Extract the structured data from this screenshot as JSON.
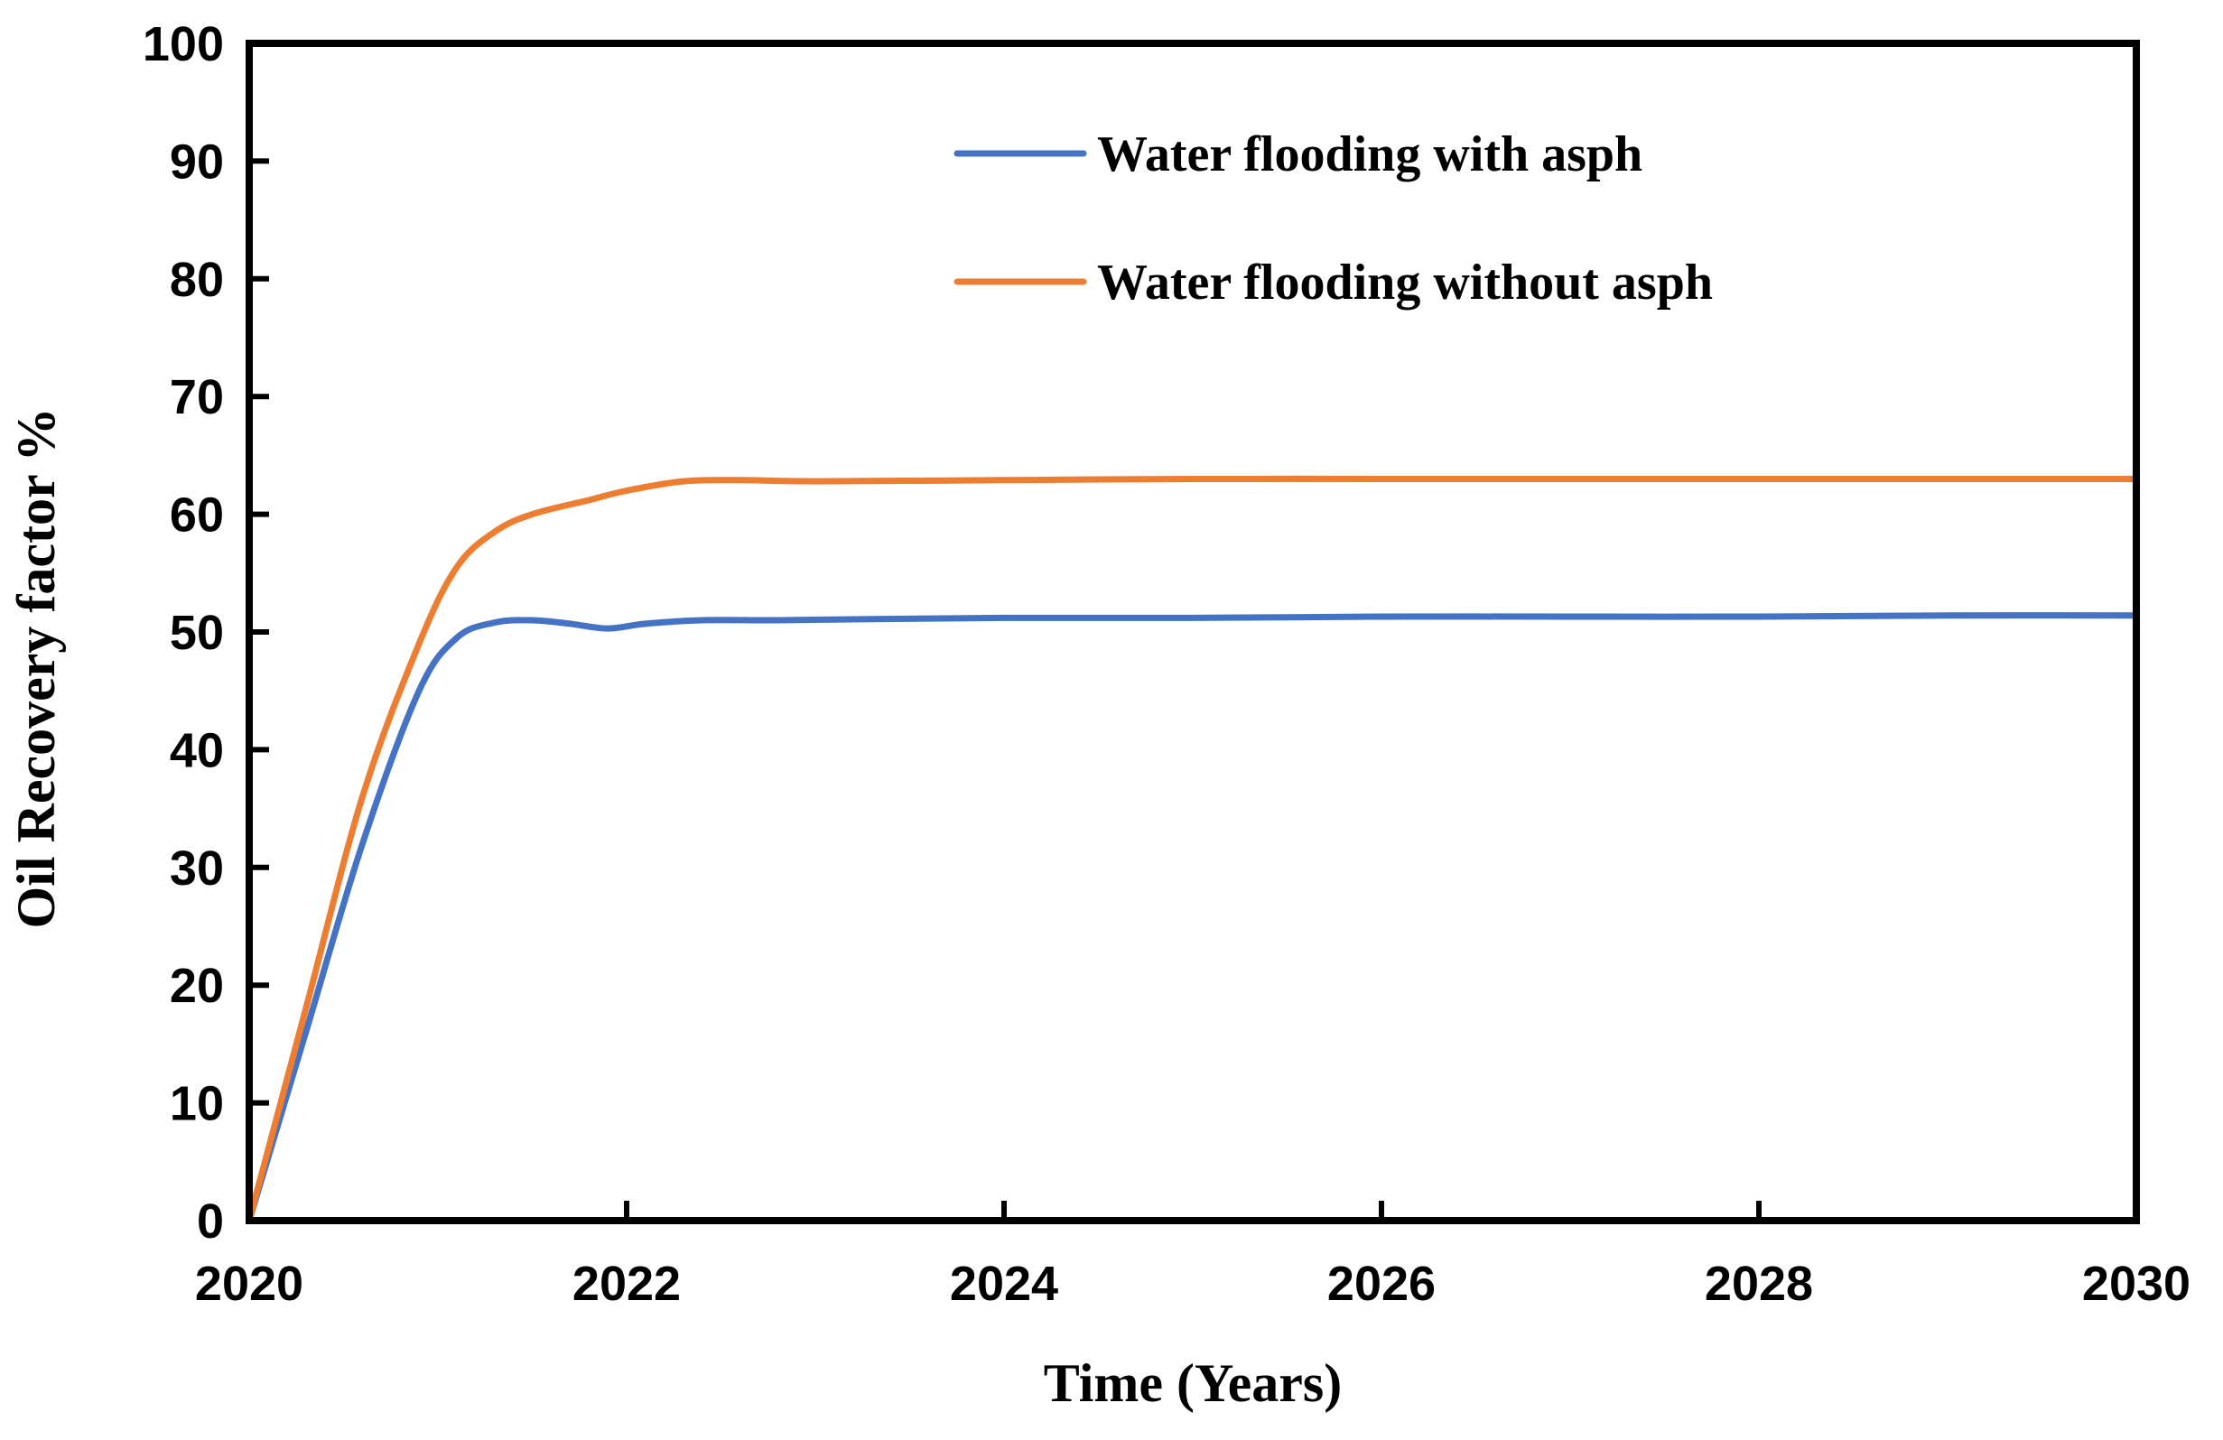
{
  "chart_data": {
    "type": "line",
    "title": "",
    "xlabel": "Time (Years)",
    "ylabel": "Oil Recovery factor %",
    "xlim": [
      2020,
      2030
    ],
    "ylim": [
      0,
      100
    ],
    "x_ticks": [
      "2020",
      "2022",
      "2024",
      "2026",
      "2028",
      "2030"
    ],
    "y_ticks": [
      "0",
      "10",
      "20",
      "30",
      "40",
      "50",
      "60",
      "70",
      "80",
      "90",
      "100"
    ],
    "grid": false,
    "legend_position": "top-right",
    "series": [
      {
        "name": "Water flooding with asph",
        "color": "#4472C4",
        "x": [
          2020,
          2020.3,
          2020.6,
          2020.9,
          2021.1,
          2021.3,
          2021.5,
          2021.7,
          2021.9,
          2022.1,
          2022.4,
          2022.8,
          2023.3,
          2024,
          2025,
          2026,
          2027,
          2028,
          2029,
          2030
        ],
        "y": [
          0,
          16,
          32,
          45,
          49.5,
          50.8,
          51,
          50.7,
          50.3,
          50.7,
          51,
          51,
          51.1,
          51.2,
          51.2,
          51.3,
          51.3,
          51.3,
          51.4,
          51.4
        ]
      },
      {
        "name": "Water flooding without asph",
        "color": "#ED7D31",
        "x": [
          2020,
          2020.3,
          2020.6,
          2020.9,
          2021.1,
          2021.3,
          2021.5,
          2021.8,
          2022.0,
          2022.3,
          2022.6,
          2023,
          2024,
          2025,
          2026,
          2027,
          2028,
          2029,
          2030
        ],
        "y": [
          0,
          18,
          36,
          49,
          55.5,
          58.5,
          60,
          61.2,
          62,
          62.8,
          62.9,
          62.8,
          62.9,
          63,
          63,
          63,
          63,
          63,
          63
        ]
      }
    ]
  }
}
